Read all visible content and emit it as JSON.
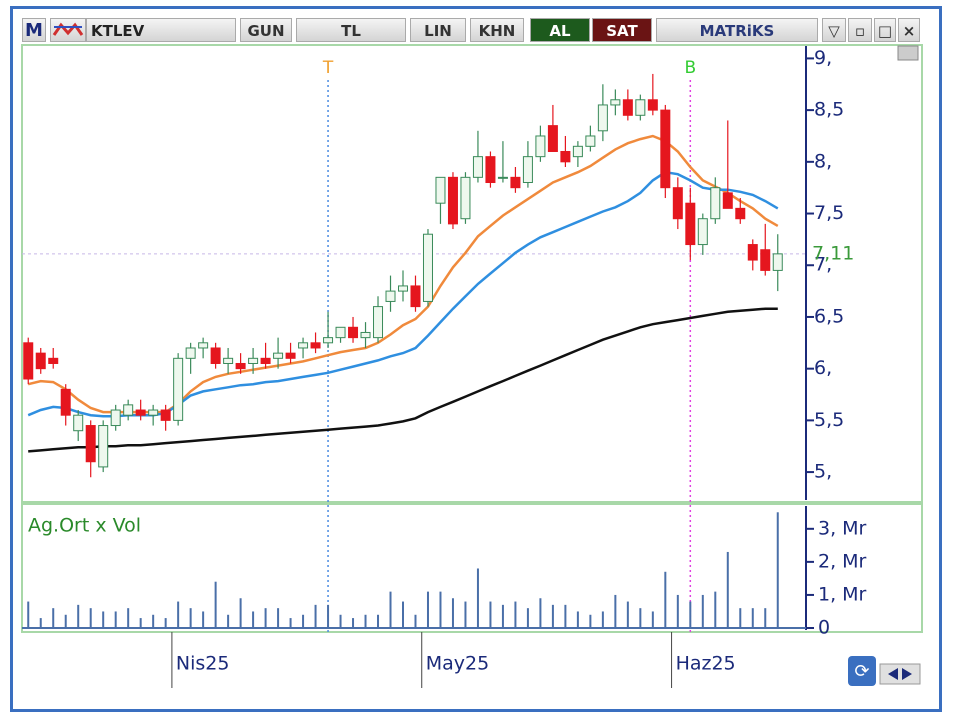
{
  "toolbar": {
    "logo": "M",
    "symbol": "KTLEV",
    "buttons": [
      "GUN",
      "TL",
      "LIN",
      "KHN"
    ],
    "buy": "AL",
    "sell": "SAT",
    "brand": "MATRiKS"
  },
  "chart_data": [
    {
      "type": "candlestick",
      "categories": [
        null,
        null,
        null,
        null,
        null,
        null,
        null,
        null,
        null,
        null,
        null,
        null,
        "Nis25",
        null,
        null,
        null,
        null,
        null,
        null,
        null,
        null,
        null,
        null,
        null,
        null,
        null,
        null,
        null,
        null,
        null,
        null,
        null,
        "May25",
        null,
        null,
        null,
        null,
        null,
        null,
        null,
        null,
        null,
        null,
        null,
        null,
        null,
        null,
        null,
        null,
        null,
        null,
        null,
        "Haz25",
        null,
        null,
        null,
        null,
        null,
        null,
        null,
        null
      ],
      "open": [
        6.25,
        6.15,
        6.1,
        5.8,
        5.4,
        5.45,
        5.05,
        5.45,
        5.55,
        5.6,
        5.55,
        5.6,
        5.5,
        6.1,
        6.2,
        6.2,
        6.05,
        6.05,
        6.05,
        6.1,
        6.1,
        6.15,
        6.2,
        6.25,
        6.25,
        6.3,
        6.4,
        6.3,
        6.3,
        6.65,
        6.75,
        6.8,
        6.65,
        7.6,
        7.85,
        7.45,
        7.85,
        8.05,
        7.85,
        7.85,
        7.8,
        8.05,
        8.35,
        8.1,
        8.05,
        8.15,
        8.3,
        8.55,
        8.6,
        8.45,
        8.6,
        8.5,
        7.75,
        7.6,
        7.2,
        7.45,
        7.7,
        7.55,
        7.2,
        7.15,
        6.95
      ],
      "high": [
        6.3,
        6.2,
        6.2,
        5.85,
        5.6,
        5.5,
        5.5,
        5.65,
        5.7,
        5.7,
        5.65,
        5.65,
        6.15,
        6.25,
        6.3,
        6.25,
        6.2,
        6.15,
        6.2,
        6.25,
        6.3,
        6.25,
        6.3,
        6.35,
        6.55,
        6.4,
        6.5,
        6.45,
        6.7,
        6.9,
        6.95,
        6.9,
        7.35,
        7.85,
        7.9,
        7.9,
        8.3,
        8.1,
        8.2,
        7.95,
        8.2,
        8.35,
        8.55,
        8.25,
        8.2,
        8.35,
        8.75,
        8.7,
        8.7,
        8.65,
        8.85,
        8.55,
        7.85,
        7.75,
        7.5,
        7.85,
        8.4,
        7.65,
        7.25,
        7.4,
        7.3
      ],
      "low": [
        5.85,
        5.95,
        6.0,
        5.45,
        5.3,
        4.95,
        5.0,
        5.4,
        5.5,
        5.5,
        5.45,
        5.4,
        5.45,
        5.95,
        6.1,
        6.0,
        5.95,
        5.95,
        5.95,
        6.0,
        6.0,
        6.05,
        6.1,
        6.15,
        6.2,
        6.25,
        6.25,
        6.2,
        6.25,
        6.55,
        6.65,
        6.55,
        6.6,
        7.4,
        7.35,
        7.4,
        7.8,
        7.75,
        7.8,
        7.7,
        7.75,
        8.0,
        8.1,
        7.95,
        7.95,
        8.1,
        8.2,
        8.45,
        8.4,
        8.4,
        8.45,
        7.65,
        7.35,
        7.05,
        7.1,
        7.4,
        7.55,
        7.4,
        6.95,
        6.9,
        6.75
      ],
      "close": [
        5.9,
        6.0,
        6.05,
        5.55,
        5.55,
        5.1,
        5.45,
        5.6,
        5.65,
        5.55,
        5.6,
        5.5,
        6.1,
        6.2,
        6.25,
        6.05,
        6.1,
        6.0,
        6.1,
        6.05,
        6.15,
        6.1,
        6.25,
        6.2,
        6.3,
        6.4,
        6.3,
        6.35,
        6.6,
        6.75,
        6.8,
        6.6,
        7.3,
        7.85,
        7.4,
        7.85,
        8.05,
        7.8,
        7.85,
        7.75,
        8.05,
        8.25,
        8.1,
        8.0,
        8.15,
        8.25,
        8.55,
        8.6,
        8.45,
        8.6,
        8.5,
        7.75,
        7.45,
        7.2,
        7.45,
        7.75,
        7.55,
        7.45,
        7.05,
        6.95,
        7.11
      ],
      "up_color": "#3a8a5a",
      "down_color": "#e5161e",
      "series": [
        {
          "color": "#f08a3c",
          "values": [
            5.85,
            5.88,
            5.87,
            5.8,
            5.7,
            5.62,
            5.58,
            5.58,
            5.58,
            5.58,
            5.58,
            5.58,
            5.66,
            5.78,
            5.87,
            5.92,
            5.95,
            5.97,
            5.99,
            6.01,
            6.03,
            6.05,
            6.07,
            6.1,
            6.13,
            6.16,
            6.18,
            6.2,
            6.25,
            6.33,
            6.42,
            6.48,
            6.6,
            6.8,
            6.98,
            7.12,
            7.28,
            7.38,
            7.48,
            7.56,
            7.64,
            7.72,
            7.8,
            7.85,
            7.9,
            7.96,
            8.04,
            8.12,
            8.18,
            8.22,
            8.25,
            8.2,
            8.1,
            7.95,
            7.82,
            7.76,
            7.7,
            7.62,
            7.55,
            7.45,
            7.38
          ]
        },
        {
          "color": "#2f8fe0",
          "values": [
            5.55,
            5.6,
            5.63,
            5.62,
            5.58,
            5.55,
            5.54,
            5.54,
            5.55,
            5.55,
            5.55,
            5.57,
            5.65,
            5.74,
            5.78,
            5.8,
            5.82,
            5.84,
            5.85,
            5.87,
            5.88,
            5.9,
            5.92,
            5.94,
            5.96,
            5.99,
            6.02,
            6.05,
            6.08,
            6.12,
            6.15,
            6.2,
            6.32,
            6.45,
            6.58,
            6.7,
            6.82,
            6.92,
            7.02,
            7.12,
            7.2,
            7.27,
            7.32,
            7.37,
            7.42,
            7.47,
            7.52,
            7.56,
            7.62,
            7.7,
            7.82,
            7.9,
            7.88,
            7.82,
            7.75,
            7.73,
            7.73,
            7.71,
            7.68,
            7.62,
            7.55
          ]
        },
        {
          "color": "#111111",
          "values": [
            5.2,
            5.21,
            5.22,
            5.23,
            5.24,
            5.24,
            5.25,
            5.25,
            5.26,
            5.26,
            5.27,
            5.28,
            5.29,
            5.3,
            5.31,
            5.32,
            5.33,
            5.34,
            5.35,
            5.36,
            5.37,
            5.38,
            5.39,
            5.4,
            5.41,
            5.42,
            5.43,
            5.44,
            5.45,
            5.47,
            5.49,
            5.52,
            5.58,
            5.63,
            5.68,
            5.73,
            5.78,
            5.83,
            5.88,
            5.93,
            5.98,
            6.03,
            6.08,
            6.13,
            6.18,
            6.23,
            6.28,
            6.32,
            6.36,
            6.4,
            6.43,
            6.45,
            6.47,
            6.49,
            6.51,
            6.53,
            6.55,
            6.56,
            6.57,
            6.58,
            6.58
          ]
        }
      ],
      "ylim": [
        4.73,
        9.12
      ],
      "yticks": [
        {
          "value": 9,
          "label": "9,"
        },
        {
          "value": 8.5,
          "label": "8,5"
        },
        {
          "value": 8,
          "label": "8,"
        },
        {
          "value": 7.5,
          "label": "7,5"
        },
        {
          "value": 7,
          "label": "7,"
        },
        {
          "value": 6.5,
          "label": "6,5"
        },
        {
          "value": 6,
          "label": "6,"
        },
        {
          "value": 5.5,
          "label": "5,5"
        },
        {
          "value": 5,
          "label": "5,"
        }
      ],
      "last_price": {
        "value": 7.11,
        "label": "7,11"
      },
      "signals": [
        {
          "label": "T",
          "category": 24,
          "color": "#f0a030",
          "line_color": "#4a8ae0"
        },
        {
          "label": "B",
          "category": 53,
          "color": "#33cc33",
          "line_color": "#e040e0"
        }
      ]
    },
    {
      "type": "bar",
      "title": "Ag.Ort x Vol",
      "color": "#4a6fa8",
      "values": [
        0.8,
        0.3,
        0.6,
        0.4,
        0.7,
        0.6,
        0.5,
        0.5,
        0.6,
        0.3,
        0.4,
        0.3,
        0.8,
        0.6,
        0.5,
        1.4,
        0.4,
        0.9,
        0.5,
        0.6,
        0.6,
        0.3,
        0.4,
        0.7,
        0.7,
        0.4,
        0.3,
        0.4,
        0.4,
        1.1,
        0.8,
        0.4,
        1.1,
        1.1,
        0.9,
        0.8,
        1.8,
        0.8,
        0.7,
        0.8,
        0.6,
        0.9,
        0.7,
        0.7,
        0.5,
        0.4,
        0.5,
        1.0,
        0.8,
        0.6,
        0.5,
        1.7,
        1.0,
        0.8,
        1.0,
        1.1,
        2.3,
        0.6,
        0.6,
        0.6,
        3.5
      ],
      "ylim": [
        0,
        3.72
      ],
      "yticks": [
        0,
        {
          "value": 1,
          "label": "1, Mr"
        },
        {
          "value": 2,
          "label": "2, Mr"
        },
        {
          "value": 3,
          "label": "3, Mr"
        }
      ]
    }
  ]
}
